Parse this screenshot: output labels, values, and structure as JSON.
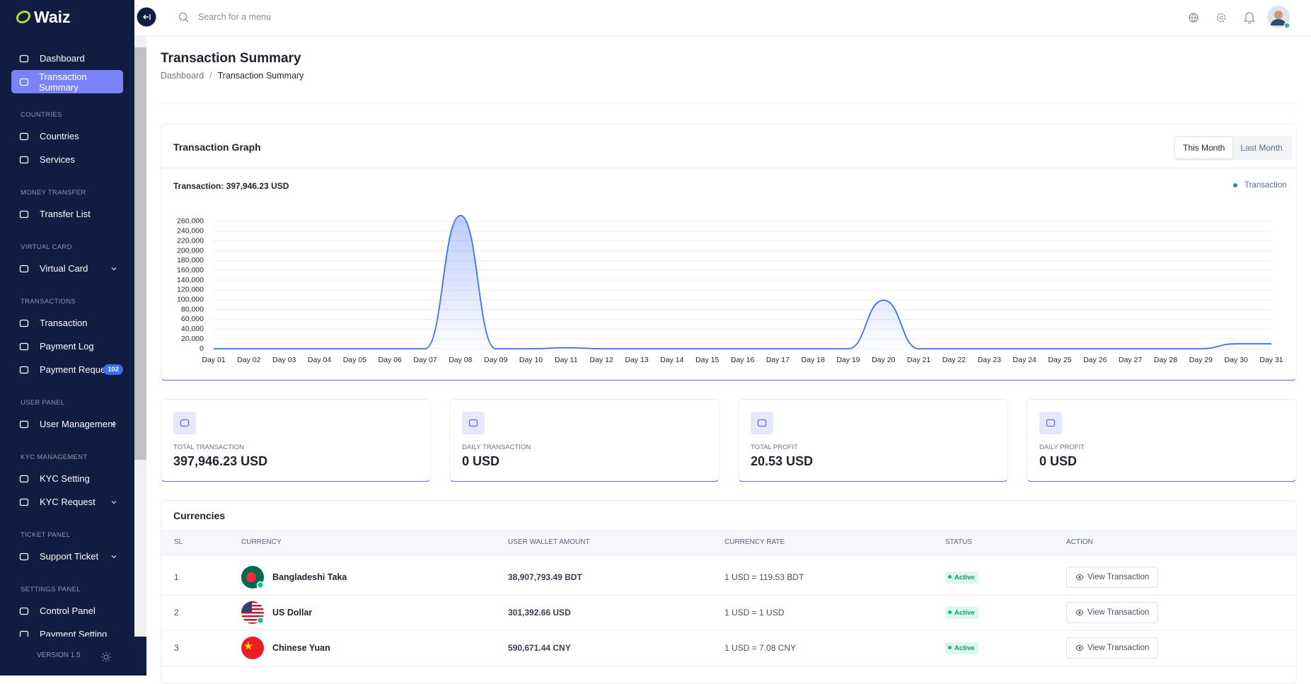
{
  "sidebar": {
    "logo": "Waiz",
    "sections": [
      {
        "items": [
          {
            "label": "Dashboard"
          },
          {
            "label": "Transaction Summary",
            "active": true
          }
        ]
      },
      {
        "heading": "COUNTRIES",
        "items": [
          {
            "label": "Countries"
          },
          {
            "label": "Services"
          }
        ]
      },
      {
        "heading": "MONEY TRANSFER",
        "items": [
          {
            "label": "Transfer List"
          }
        ]
      },
      {
        "heading": "VIRTUAL CARD",
        "items": [
          {
            "label": "Virtual Card",
            "submenu": true
          }
        ]
      },
      {
        "heading": "TRANSACTIONS",
        "items": [
          {
            "label": "Transaction"
          },
          {
            "label": "Payment Log"
          },
          {
            "label": "Payment Request",
            "badge": "102"
          }
        ]
      },
      {
        "heading": "USER PANEL",
        "items": [
          {
            "label": "User Management",
            "submenu": true
          }
        ]
      },
      {
        "heading": "KYC MANAGEMENT",
        "items": [
          {
            "label": "KYC Setting"
          },
          {
            "label": "KYC Request",
            "submenu": true
          }
        ]
      },
      {
        "heading": "TICKET PANEL",
        "items": [
          {
            "label": "Support Ticket",
            "submenu": true
          }
        ]
      },
      {
        "heading": "SETTINGS PANEL",
        "items": [
          {
            "label": "Control Panel"
          },
          {
            "label": "Payment Setting"
          }
        ]
      }
    ],
    "version": "VERSION 1.5"
  },
  "header": {
    "search_placeholder": "Search for a menu"
  },
  "page": {
    "title": "Transaction Summary",
    "breadcrumb": [
      "Dashboard",
      "Transaction Summary"
    ],
    "breadcrumb_separator": "/"
  },
  "chart_data": {
    "type": "line",
    "title": "Transaction Graph",
    "subtitle": "Transaction: 397,946.23 USD",
    "periods": [
      {
        "label": "This Month",
        "selected": true
      },
      {
        "label": "Last Month"
      }
    ],
    "categories": [
      "Day 01",
      "Day 02",
      "Day 03",
      "Day 04",
      "Day 05",
      "Day 06",
      "Day 07",
      "Day 08",
      "Day 09",
      "Day 10",
      "Day 11",
      "Day 12",
      "Day 13",
      "Day 14",
      "Day 15",
      "Day 16",
      "Day 17",
      "Day 18",
      "Day 19",
      "Day 20",
      "Day 21",
      "Day 22",
      "Day 23",
      "Day 24",
      "Day 25",
      "Day 26",
      "Day 27",
      "Day 28",
      "Day 29",
      "Day 30",
      "Day 31"
    ],
    "series": [
      {
        "name": "Transaction",
        "color": "#3f6ff2",
        "values": [
          0,
          0,
          0,
          0,
          0,
          0,
          0,
          272000,
          0,
          0,
          2000,
          0,
          0,
          0,
          0,
          0,
          0,
          0,
          0,
          99000,
          0,
          0,
          0,
          0,
          0,
          0,
          0,
          0,
          0,
          10000,
          10000
        ]
      }
    ],
    "ylim": [
      0,
      270000
    ],
    "yticks": [
      0,
      {
        "value": 20000,
        "label": "20,000"
      },
      {
        "value": 40000,
        "label": "40,000"
      },
      {
        "value": 60000,
        "label": "60,000"
      },
      {
        "value": 80000,
        "label": "80,000"
      },
      {
        "value": 100000,
        "label": "100,000"
      },
      {
        "value": 120000,
        "label": "120,000"
      },
      {
        "value": 140000,
        "label": "140,000"
      },
      {
        "value": 160000,
        "label": "160,000"
      },
      {
        "value": 180000,
        "label": "180,000"
      },
      {
        "value": 200000,
        "label": "200,000"
      },
      {
        "value": 220000,
        "label": "220,000"
      },
      {
        "value": 240000,
        "label": "240,000"
      },
      {
        "value": 260000,
        "label": "260,000"
      }
    ],
    "grid": true,
    "legend": "top-right"
  },
  "stats": [
    {
      "label": "TOTAL TRANSACTION",
      "value": "397,946.23 USD"
    },
    {
      "label": "DAILY TRANSACTION",
      "value": "0 USD"
    },
    {
      "label": "TOTAL PROFIT",
      "value": "20.53 USD"
    },
    {
      "label": "DAILY PROFIT",
      "value": "0 USD"
    }
  ],
  "currencies": {
    "title": "Currencies",
    "columns": [
      "SL",
      "CURRENCY",
      "USER WALLET AMOUNT",
      "CURRENCY RATE",
      "STATUS",
      "ACTION"
    ],
    "rows": [
      [
        "1",
        "Bangladeshi Taka",
        "38,907,793.49 BDT",
        "1 USD = 119.53 BDT",
        "Active",
        "View Transaction"
      ],
      [
        "2",
        "US Dollar",
        "301,392.66 USD",
        "1 USD = 1 USD",
        "Active",
        "View Transaction"
      ],
      [
        "3",
        "Chinese Yuan",
        "590,671.44 CNY",
        "1 USD = 7.08 CNY",
        "Active",
        "View Transaction"
      ]
    ]
  }
}
